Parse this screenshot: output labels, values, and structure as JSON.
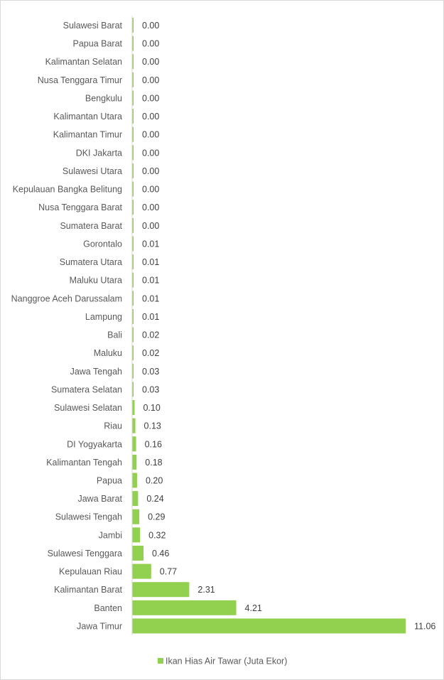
{
  "chart_data": {
    "type": "bar",
    "orientation": "horizontal",
    "categories": [
      "Sulawesi Barat",
      "Papua Barat",
      "Kalimantan Selatan",
      "Nusa Tenggara Timur",
      "Bengkulu",
      "Kalimantan Utara",
      "Kalimantan Timur",
      "DKI Jakarta",
      "Sulawesi Utara",
      "Kepulauan Bangka Belitung",
      "Nusa Tenggara Barat",
      "Sumatera Barat",
      "Gorontalo",
      "Sumatera Utara",
      "Maluku Utara",
      "Nanggroe Aceh Darussalam",
      "Lampung",
      "Bali",
      "Maluku",
      "Jawa Tengah",
      "Sumatera Selatan",
      "Sulawesi Selatan",
      "Riau",
      "DI Yogyakarta",
      "Kalimantan Tengah",
      "Papua",
      "Jawa Barat",
      "Sulawesi Tengah",
      "Jambi",
      "Sulawesi Tenggara",
      "Kepulauan Riau",
      "Kalimantan Barat",
      "Banten",
      "Jawa Timur"
    ],
    "series": [
      {
        "name": "Ikan Hias Air Tawar  (Juta Ekor)",
        "values": [
          0.0,
          0.0,
          0.0,
          0.0,
          0.0,
          0.0,
          0.0,
          0.0,
          0.0,
          0.0,
          0.0,
          0.0,
          0.01,
          0.01,
          0.01,
          0.01,
          0.01,
          0.02,
          0.02,
          0.03,
          0.03,
          0.1,
          0.13,
          0.16,
          0.18,
          0.2,
          0.24,
          0.29,
          0.32,
          0.46,
          0.77,
          2.31,
          4.21,
          11.06
        ],
        "value_labels": [
          "0.00",
          "0.00",
          "0.00",
          "0.00",
          "0.00",
          "0.00",
          "0.00",
          "0.00",
          "0.00",
          "0.00",
          "0.00",
          "0.00",
          "0.01",
          "0.01",
          "0.01",
          "0.01",
          "0.01",
          "0.02",
          "0.02",
          "0.03",
          "0.03",
          "0.10",
          "0.13",
          "0.16",
          "0.18",
          "0.20",
          "0.24",
          "0.29",
          "0.32",
          "0.46",
          "0.77",
          "2.31",
          "4.21",
          "11.06"
        ],
        "color": "#92d050"
      }
    ],
    "xlim": [
      0,
      11.06
    ],
    "grid": false,
    "legend": "bottom-center"
  }
}
